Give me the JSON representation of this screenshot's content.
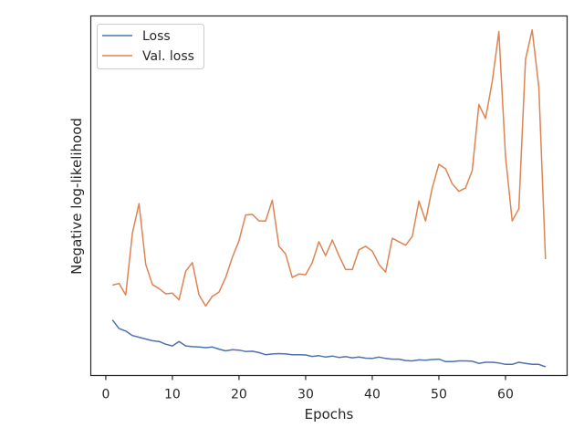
{
  "chart_data": {
    "type": "line",
    "title": "",
    "xlabel": "Epochs",
    "ylabel": "Negative log-likelihood",
    "xlim": [
      -2.25,
      69.25
    ],
    "ylim": [
      -0.9,
      9.45
    ],
    "xticks": [
      0,
      10,
      20,
      30,
      40,
      50,
      60
    ],
    "xtick_labels": [
      "0",
      "10",
      "20",
      "30",
      "40",
      "50",
      "60"
    ],
    "yticks_visible": false,
    "grid": false,
    "legend_position": "top-left",
    "x": [
      1,
      2,
      3,
      4,
      5,
      6,
      7,
      8,
      9,
      10,
      11,
      12,
      13,
      14,
      15,
      16,
      17,
      18,
      19,
      20,
      21,
      22,
      23,
      24,
      25,
      26,
      27,
      28,
      29,
      30,
      31,
      32,
      33,
      34,
      35,
      36,
      37,
      38,
      39,
      40,
      41,
      42,
      43,
      44,
      45,
      46,
      47,
      48,
      49,
      50,
      51,
      52,
      53,
      54,
      55,
      56,
      57,
      58,
      59,
      60,
      61,
      62,
      63,
      64,
      65,
      66
    ],
    "series": [
      {
        "name": "Loss",
        "color": "#4c72b0",
        "values": [
          0.7,
          0.45,
          0.38,
          0.25,
          0.2,
          0.15,
          0.1,
          0.08,
          0.0,
          -0.05,
          0.08,
          -0.05,
          -0.07,
          -0.08,
          -0.1,
          -0.08,
          -0.14,
          -0.19,
          -0.16,
          -0.17,
          -0.21,
          -0.2,
          -0.24,
          -0.3,
          -0.28,
          -0.27,
          -0.28,
          -0.3,
          -0.3,
          -0.31,
          -0.35,
          -0.33,
          -0.37,
          -0.34,
          -0.38,
          -0.36,
          -0.39,
          -0.37,
          -0.4,
          -0.41,
          -0.37,
          -0.41,
          -0.43,
          -0.43,
          -0.47,
          -0.48,
          -0.45,
          -0.46,
          -0.44,
          -0.43,
          -0.5,
          -0.5,
          -0.48,
          -0.48,
          -0.49,
          -0.55,
          -0.52,
          -0.52,
          -0.54,
          -0.58,
          -0.58,
          -0.52,
          -0.55,
          -0.58,
          -0.58,
          -0.65
        ]
      },
      {
        "name": "Val. loss",
        "color": "#dd8452",
        "values": [
          1.7,
          1.75,
          1.42,
          3.2,
          4.05,
          2.3,
          1.72,
          1.6,
          1.45,
          1.47,
          1.28,
          2.1,
          2.35,
          1.42,
          1.1,
          1.38,
          1.5,
          1.92,
          2.5,
          2.98,
          3.72,
          3.74,
          3.55,
          3.55,
          4.15,
          2.82,
          2.6,
          1.92,
          2.02,
          2.0,
          2.35,
          2.95,
          2.55,
          3.0,
          2.55,
          2.15,
          2.15,
          2.72,
          2.82,
          2.68,
          2.3,
          2.08,
          3.05,
          2.95,
          2.85,
          3.1,
          4.12,
          3.55,
          4.5,
          5.18,
          5.05,
          4.62,
          4.4,
          4.5,
          5.0,
          6.9,
          6.5,
          7.55,
          9.0,
          5.4,
          3.55,
          3.9,
          8.2,
          9.05,
          7.4,
          2.45
        ]
      }
    ]
  }
}
